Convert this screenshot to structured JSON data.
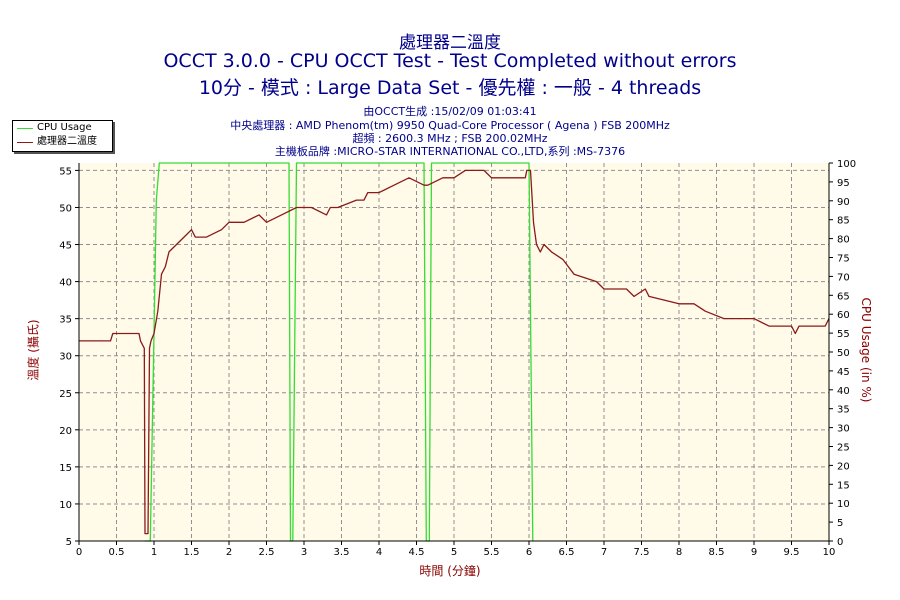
{
  "header": {
    "title_line1": "處理器二溫度",
    "title_line2": "OCCT 3.0.0 - CPU OCCT Test - Test Completed without errors",
    "title_line3": "10分 - 模式 : Large Data Set - 優先權 : 一般 - 4 threads",
    "info_line1": "由OCCT生成 :15/02/09 01:03:41",
    "info_line2": "中央處理器 : AMD Phenom(tm) 9950 Quad-Core Processor ( Agena ) FSB 200MHz",
    "info_line3": "超頻 : 2600.3 MHz ; FSB 200.02MHz",
    "info_line4": "主機板品牌 :MICRO-STAR INTERNATIONAL CO.,LTD,系列 :MS-7376"
  },
  "colors": {
    "plot_background": "#fffbe8",
    "temperature": "#8b1a1a",
    "cpu_usage": "#33dd33",
    "grid": "#909090",
    "axis_text": "#000000",
    "label_text": "#8b0000"
  },
  "chart_data": {
    "type": "line",
    "xlabel": "時間 (分鐘)",
    "ylabel": "溫度 (攝氏)",
    "y2label": "CPU Usage (in %)",
    "xlim": [
      0,
      10
    ],
    "ylim": [
      5,
      56
    ],
    "y2lim": [
      0,
      100
    ],
    "x_ticks": [
      "0",
      "0.5",
      "1",
      "1.5",
      "2",
      "2.5",
      "3",
      "3.5",
      "4",
      "4.5",
      "5",
      "5.5",
      "6",
      "6.5",
      "7",
      "7.5",
      "8",
      "8.5",
      "9",
      "9.5",
      "10"
    ],
    "y_ticks": [
      "5",
      "10",
      "15",
      "20",
      "25",
      "30",
      "35",
      "40",
      "45",
      "50",
      "55"
    ],
    "y2_ticks": [
      "0",
      "5",
      "10",
      "15",
      "20",
      "25",
      "30",
      "35",
      "40",
      "45",
      "50",
      "55",
      "60",
      "65",
      "70",
      "75",
      "80",
      "85",
      "90",
      "95",
      "100"
    ],
    "grid": true,
    "legend": "top-left",
    "series": [
      {
        "name": "CPU Usage",
        "axis": "right",
        "x": [
          0.88,
          0.95,
          1.0,
          1.03,
          1.07,
          1.1,
          2.5,
          2.8,
          2.82,
          2.85,
          2.9,
          2.93,
          4.6,
          4.63,
          4.67,
          4.7,
          6.0,
          6.05
        ],
        "y": [
          0,
          0,
          55,
          90,
          100,
          100,
          100,
          100,
          0,
          0,
          100,
          100,
          100,
          0,
          0,
          100,
          100,
          0
        ]
      },
      {
        "name": "處理器二溫度",
        "axis": "left",
        "x": [
          0,
          0.42,
          0.45,
          0.8,
          0.82,
          0.87,
          0.88,
          0.92,
          0.94,
          0.96,
          1.0,
          1.05,
          1.1,
          1.15,
          1.2,
          1.3,
          1.4,
          1.5,
          1.55,
          1.7,
          1.9,
          2.0,
          2.2,
          2.4,
          2.5,
          2.7,
          2.9,
          3.1,
          3.3,
          3.35,
          3.45,
          3.7,
          3.8,
          3.85,
          4.0,
          4.2,
          4.4,
          4.6,
          4.65,
          4.85,
          5.0,
          5.15,
          5.4,
          5.5,
          5.6,
          5.95,
          5.97,
          6.02,
          6.06,
          6.1,
          6.15,
          6.2,
          6.3,
          6.45,
          6.6,
          6.9,
          7.0,
          7.3,
          7.4,
          7.55,
          7.6,
          8.0,
          8.2,
          8.35,
          8.6,
          8.9,
          9.0,
          9.2,
          9.5,
          9.55,
          9.6,
          9.95,
          10.0
        ],
        "y": [
          32,
          32,
          33,
          33,
          32,
          31,
          6,
          6,
          31,
          32,
          33,
          36,
          41,
          42,
          44,
          45,
          46,
          47,
          46,
          46,
          47,
          48,
          48,
          49,
          48,
          49,
          50,
          50,
          49,
          50,
          50,
          51,
          51,
          52,
          52,
          53,
          54,
          53,
          53,
          54,
          54,
          55,
          55,
          54,
          54,
          54,
          55,
          55,
          48,
          45,
          44,
          45,
          44,
          43,
          41,
          40,
          39,
          39,
          38,
          39,
          38,
          37,
          37,
          36,
          35,
          35,
          35,
          34,
          34,
          33,
          34,
          34,
          35
        ]
      }
    ]
  }
}
